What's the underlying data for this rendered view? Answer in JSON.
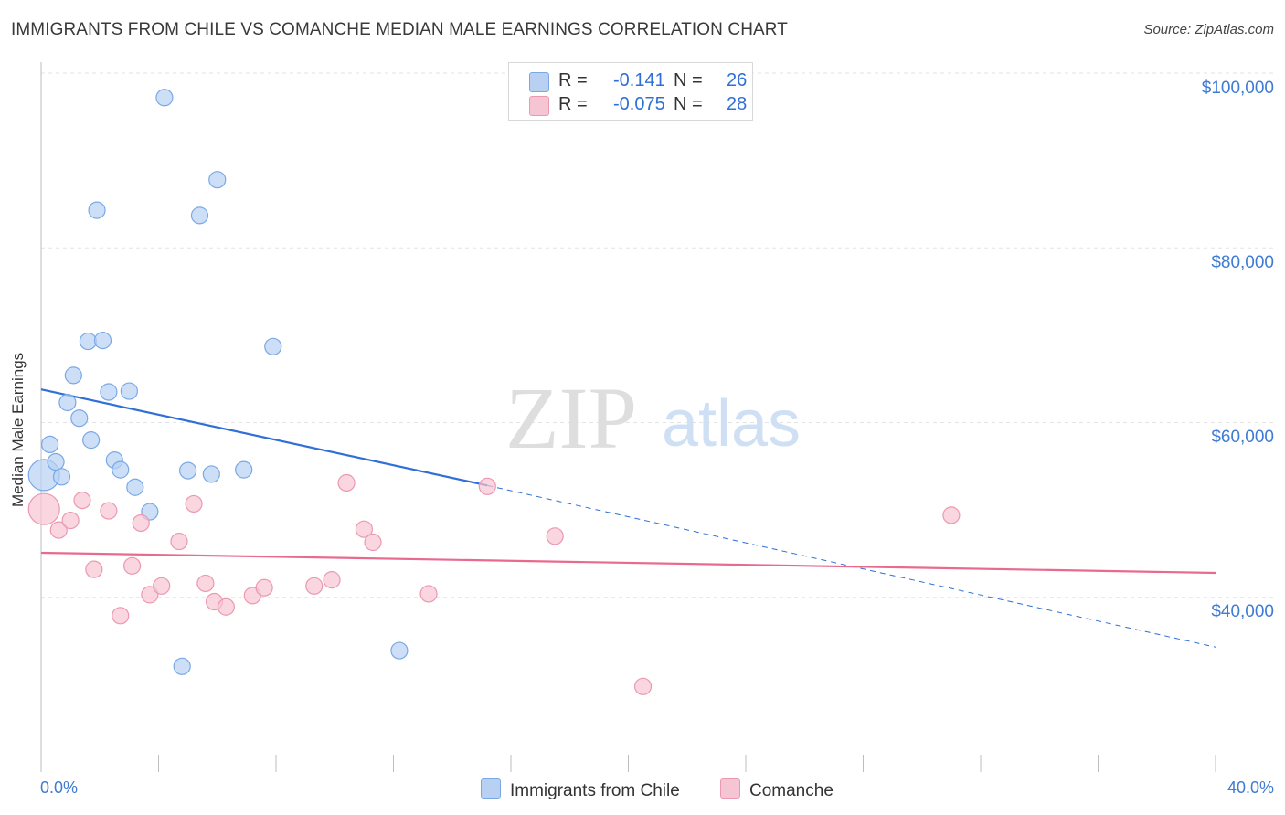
{
  "title": "IMMIGRANTS FROM CHILE VS COMANCHE MEDIAN MALE EARNINGS CORRELATION CHART",
  "source": "Source: ZipAtlas.com",
  "watermark": {
    "zip": "ZIP",
    "atlas": "atlas"
  },
  "chart_data": {
    "type": "scatter",
    "title": "IMMIGRANTS FROM CHILE VS COMANCHE MEDIAN MALE EARNINGS CORRELATION CHART",
    "xlabel": "",
    "ylabel": "Median Male Earnings",
    "xlim": [
      0,
      40
    ],
    "ylim": [
      20000,
      102000
    ],
    "x_tick_labels": [
      "0.0%",
      "40.0%"
    ],
    "y_ticks": [
      40000,
      60000,
      80000,
      100000
    ],
    "y_tick_labels": [
      "$40,000",
      "$60,000",
      "$80,000",
      "$100,000"
    ],
    "grid": true,
    "legend_position": "top-center",
    "series": [
      {
        "name": "Immigrants from Chile",
        "color": "#7aa8e6",
        "fill": "#b8d1f3",
        "r_label": "R =",
        "r_value": "-0.141",
        "n_label": "N =",
        "n_value": "26",
        "trend": {
          "x0": 0,
          "y0": 63800,
          "x1": 15.2,
          "y1": 52800,
          "dash_to_x": 40,
          "dash_to_y": 34300,
          "color": "#2f6fd6"
        },
        "points": [
          {
            "x": 0.1,
            "y": 54000,
            "big": true
          },
          {
            "x": 0.3,
            "y": 57500
          },
          {
            "x": 0.5,
            "y": 55500
          },
          {
            "x": 0.7,
            "y": 53800
          },
          {
            "x": 0.9,
            "y": 62300
          },
          {
            "x": 1.1,
            "y": 65400
          },
          {
            "x": 1.3,
            "y": 60500
          },
          {
            "x": 1.6,
            "y": 69300
          },
          {
            "x": 1.7,
            "y": 58000
          },
          {
            "x": 1.9,
            "y": 84300
          },
          {
            "x": 2.1,
            "y": 69400
          },
          {
            "x": 2.3,
            "y": 63500
          },
          {
            "x": 2.5,
            "y": 55700
          },
          {
            "x": 2.7,
            "y": 54600
          },
          {
            "x": 3.0,
            "y": 63600
          },
          {
            "x": 3.2,
            "y": 52600
          },
          {
            "x": 3.7,
            "y": 49800
          },
          {
            "x": 4.2,
            "y": 97200
          },
          {
            "x": 4.8,
            "y": 32100
          },
          {
            "x": 5.0,
            "y": 54500
          },
          {
            "x": 5.4,
            "y": 83700
          },
          {
            "x": 5.8,
            "y": 54100
          },
          {
            "x": 6.0,
            "y": 87800
          },
          {
            "x": 6.9,
            "y": 54600
          },
          {
            "x": 7.9,
            "y": 68700
          },
          {
            "x": 12.2,
            "y": 33900
          }
        ]
      },
      {
        "name": "Comanche",
        "color": "#ec98b0",
        "fill": "#f6c5d3",
        "r_label": "R =",
        "r_value": "-0.075",
        "n_label": "N =",
        "n_value": "28",
        "trend": {
          "x0": 0,
          "y0": 45100,
          "x1": 40,
          "y1": 42800,
          "color": "#e86b8f"
        },
        "points": [
          {
            "x": 0.1,
            "y": 50100,
            "big": true
          },
          {
            "x": 0.6,
            "y": 47700
          },
          {
            "x": 1.0,
            "y": 48800
          },
          {
            "x": 1.4,
            "y": 51100
          },
          {
            "x": 1.8,
            "y": 43200
          },
          {
            "x": 2.3,
            "y": 49900
          },
          {
            "x": 2.7,
            "y": 37900
          },
          {
            "x": 3.1,
            "y": 43600
          },
          {
            "x": 3.4,
            "y": 48500
          },
          {
            "x": 3.7,
            "y": 40300
          },
          {
            "x": 4.1,
            "y": 41300
          },
          {
            "x": 4.7,
            "y": 46400
          },
          {
            "x": 5.2,
            "y": 50700
          },
          {
            "x": 5.6,
            "y": 41600
          },
          {
            "x": 5.9,
            "y": 39500
          },
          {
            "x": 6.3,
            "y": 38900
          },
          {
            "x": 7.2,
            "y": 40200
          },
          {
            "x": 7.6,
            "y": 41100
          },
          {
            "x": 9.3,
            "y": 41300
          },
          {
            "x": 9.9,
            "y": 42000
          },
          {
            "x": 10.4,
            "y": 53100
          },
          {
            "x": 11.0,
            "y": 47800
          },
          {
            "x": 11.3,
            "y": 46300
          },
          {
            "x": 13.2,
            "y": 40400
          },
          {
            "x": 15.2,
            "y": 52700
          },
          {
            "x": 17.5,
            "y": 47000
          },
          {
            "x": 20.5,
            "y": 29800
          },
          {
            "x": 31.0,
            "y": 49400
          }
        ]
      }
    ]
  }
}
